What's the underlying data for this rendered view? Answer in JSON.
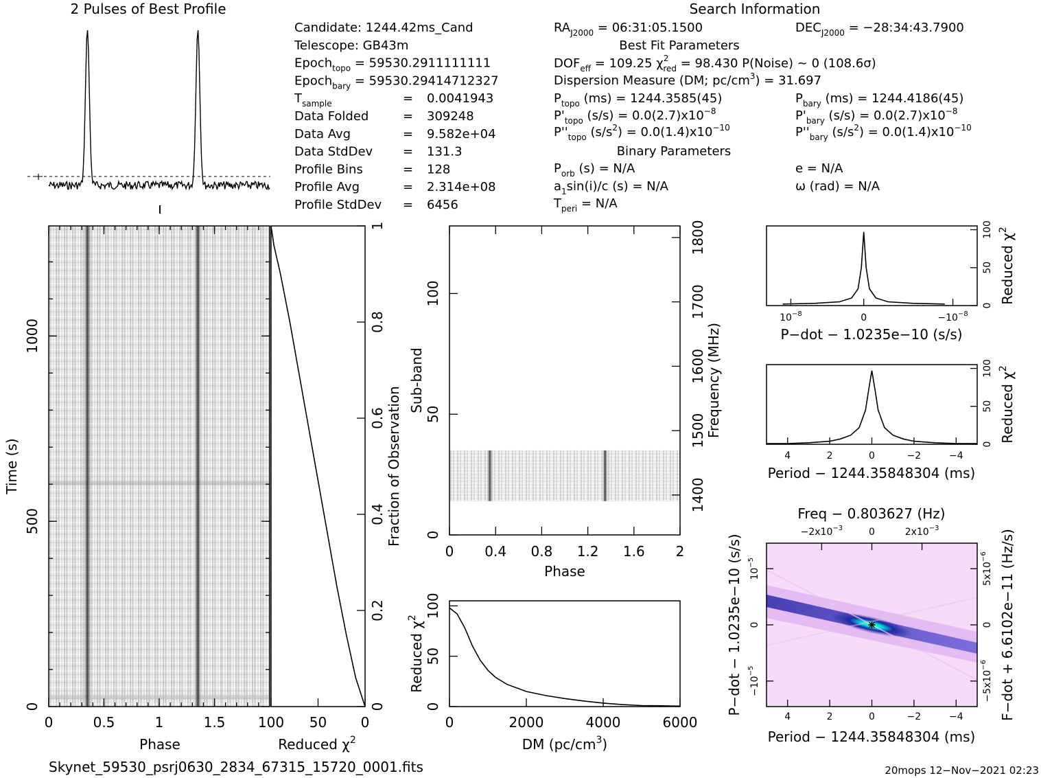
{
  "profile": {
    "title": "2 Pulses of Best Profile"
  },
  "info": {
    "left": [
      {
        "label": "Candidate:  1244.42ms_Cand"
      },
      {
        "label": "Telescope:  GB43m"
      },
      {
        "label": "Epoch",
        "sub": "topo",
        "value": " = 59530.2911111111"
      },
      {
        "label": "Epoch",
        "sub": "bary",
        "value": " = 59530.29414712327"
      },
      {
        "label": "T",
        "sub": "sample",
        "eq": "=",
        "value": "0.0041943"
      },
      {
        "label": "Data Folded",
        "eq": "=",
        "value": "309248"
      },
      {
        "label": "Data Avg",
        "eq": "=",
        "value": "9.582e+04"
      },
      {
        "label": "Data StdDev",
        "eq": "=",
        "value": "131.3"
      },
      {
        "label": "Profile Bins",
        "eq": "=",
        "value": "128"
      },
      {
        "label": "Profile Avg",
        "eq": "=",
        "value": "2.314e+08"
      },
      {
        "label": "Profile StdDev",
        "eq": "=",
        "value": "6456"
      }
    ],
    "search_title": "Search Information",
    "ra": {
      "label": "RA",
      "sub": "J2000",
      "value": " = 06:31:05.1500"
    },
    "dec": {
      "label": "DEC",
      "sub": "J2000",
      "value": " = −28:34:43.7900"
    },
    "best_fit_title": "Best Fit Parameters",
    "dof": {
      "a": "DOF",
      "a_sub": "eff",
      "b": " = 109.25  χ",
      "b_sup": "2",
      "b_sub": "red",
      "c": " = 98.430  P(Noise) ~ 0   (108.6σ)"
    },
    "dm": {
      "a": "Dispersion Measure (DM; pc/cm",
      "a_sup": "3",
      "b": ") = 31.697"
    },
    "ptopo": {
      "a": "P",
      "a_sub": "topo",
      "b": " (ms) =  1244.3585(45)"
    },
    "pbary": {
      "a": "P",
      "a_sub": "bary",
      "b": " (ms) =  1244.4186(45)"
    },
    "pdtopo": {
      "a": "P'",
      "a_sub": "topo",
      "b": " (s/s) = 0.0(2.7)x10",
      "b_sup": "−8"
    },
    "pdbary": {
      "a": "P'",
      "a_sub": "bary",
      "b": " (s/s) = 0.0(2.7)x10",
      "b_sup": "−8"
    },
    "pddtopo": {
      "a": "P''",
      "a_sub": "topo",
      "b": " (s/s",
      "b_sup": "2",
      "c": ") = 0.0(1.4)x10",
      "c_sup": "−10"
    },
    "pddbary": {
      "a": "P''",
      "a_sub": "bary",
      "b": " (s/s",
      "b_sup": "2",
      "c": ") = 0.0(1.4)x10",
      "c_sup": "−10"
    },
    "binary_title": "Binary Parameters",
    "porb": {
      "a": "P",
      "a_sub": "orb",
      "b": " (s) = N/A"
    },
    "ecc": "e = N/A",
    "asini": {
      "a": "a",
      "a_sub": "1",
      "b": "sin(i)/c (s) = N/A"
    },
    "omega": "ω (rad) = N/A",
    "tperi": {
      "a": "T",
      "a_sub": "peri",
      "b": " = N/A"
    }
  },
  "footer": {
    "filename": "Skynet_59530_psrj0630_2834_67315_15720_0001.fits",
    "stamp": "20mops 12−Nov−2021 02:23"
  },
  "colors": {
    "ink": "#000000",
    "map_dark": "#1b1b8f",
    "map_hot": "#00e0e0",
    "map_mid": "#d9a6ee",
    "map_bg": "#f6dcf9"
  },
  "chart_data": [
    {
      "id": "pulse_profile",
      "type": "line",
      "title": "2 Pulses of Best Profile",
      "x": "phase 0-2",
      "pulse_centers": [
        0.35,
        1.35
      ],
      "peak_relative_height": 1.0
    },
    {
      "id": "time_phase",
      "type": "heatmap",
      "xlabel": "Phase",
      "xlim": [
        0,
        2
      ],
      "xticks": [
        "0",
        "0.5",
        "1",
        "1.5"
      ],
      "ylabel": "Time (s)",
      "ylim": [
        0,
        1297
      ],
      "yticks": [
        "0",
        "500",
        "1000"
      ],
      "pulse_phase": [
        0.35,
        1.35
      ]
    },
    {
      "id": "reduced_chi2_vs_fraction",
      "type": "line",
      "xlabel": "Reduced χ",
      "xlabel_sup": "2",
      "xlim": [
        100,
        0
      ],
      "xticks": [
        "100",
        "50",
        "0"
      ],
      "ylabel": "Fraction of Observation",
      "ylim": [
        0,
        1
      ],
      "yticks": [
        "0",
        "0.2",
        "0.4",
        "0.6",
        "0.8",
        "1"
      ],
      "x": [
        0,
        10,
        20,
        30,
        40,
        50,
        60,
        70,
        80,
        90,
        97,
        100
      ],
      "y": [
        0.0,
        0.06,
        0.15,
        0.25,
        0.36,
        0.47,
        0.58,
        0.69,
        0.8,
        0.9,
        0.96,
        1.0
      ]
    },
    {
      "id": "subband_phase",
      "type": "heatmap",
      "xlabel": "Phase",
      "xlim": [
        0,
        2
      ],
      "xticks": [
        "0",
        "0.4",
        "0.8",
        "1.2",
        "1.6",
        "2"
      ],
      "ylabel": "Sub-band",
      "ylim": [
        0,
        128
      ],
      "yticks": [
        "0",
        "50",
        "100"
      ],
      "y2label": "Frequency (MHz)",
      "y2ticks": [
        "1400",
        "1500",
        "1600",
        "1700",
        "1800"
      ],
      "band_subbands": [
        14,
        35
      ]
    },
    {
      "id": "dm_curve",
      "type": "line",
      "xlabel": "DM (pc/cm",
      "xlabel_sup": "3",
      "xlabel_end": ")",
      "xlim": [
        0,
        6000
      ],
      "xticks": [
        "0",
        "2000",
        "4000",
        "6000"
      ],
      "ylabel": "Reduced χ",
      "ylabel_sup": "2",
      "ylim": [
        0,
        100
      ],
      "yticks": [
        "0",
        "50",
        "100"
      ],
      "x": [
        0,
        200,
        400,
        600,
        800,
        1000,
        1200,
        1500,
        2000,
        2500,
        3000,
        3500,
        4000,
        4500,
        5000,
        5500,
        6000
      ],
      "y": [
        98,
        92,
        78,
        60,
        46,
        36,
        29,
        22,
        15,
        11,
        8,
        5.5,
        3.5,
        2,
        1,
        0.8,
        0.5
      ]
    },
    {
      "id": "pdot_curve",
      "type": "line",
      "xlabel": "P−dot − 1.0235e−10 (s/s)",
      "xticks": [
        {
          "base": "10",
          "sup": "−8"
        },
        {
          "base": "0"
        },
        {
          "base": "−10",
          "sup": "−8"
        }
      ],
      "ylabel": "Reduced χ",
      "ylabel_sup": "2",
      "ylim": [
        0,
        100
      ],
      "yticks": [
        "0",
        "50",
        "100"
      ],
      "x": [
        -1,
        -0.6,
        -0.3,
        -0.15,
        -0.07,
        -0.03,
        0,
        0.03,
        0.07,
        0.15,
        0.3,
        0.6,
        1
      ],
      "y": [
        2,
        3,
        5,
        10,
        22,
        50,
        97,
        50,
        22,
        10,
        5,
        3,
        2
      ]
    },
    {
      "id": "period_curve",
      "type": "line",
      "xlabel": "Period − 1244.35848304 (ms)",
      "xlim": [
        5,
        -5
      ],
      "xticks": [
        "4",
        "2",
        "0",
        "−2",
        "−4"
      ],
      "ylabel": "Reduced χ",
      "ylabel_sup": "2",
      "ylim": [
        0,
        100
      ],
      "yticks": [
        "0",
        "50",
        "100"
      ],
      "x": [
        5,
        4,
        3,
        2,
        1.5,
        1,
        0.6,
        0.3,
        0.15,
        0,
        -0.15,
        -0.3,
        -0.6,
        -1,
        -1.5,
        -2,
        -3,
        -4,
        -5
      ],
      "y": [
        1,
        1,
        2,
        4,
        7,
        12,
        22,
        45,
        72,
        97,
        72,
        45,
        22,
        12,
        7,
        4,
        2,
        1,
        1
      ]
    },
    {
      "id": "p_pdot_plane",
      "type": "heatmap",
      "top_label": "Freq − 0.803627 (Hz)",
      "top_ticks": [
        {
          "base": "−2x10",
          "sup": "−3"
        },
        {
          "base": "0"
        },
        {
          "base": "2x10",
          "sup": "−3"
        }
      ],
      "xlabel": "Period − 1244.35848304 (ms)",
      "xticks": [
        "4",
        "2",
        "0",
        "−2",
        "−4"
      ],
      "ylabel": "P−dot − 1.0235e−10 (s/s)",
      "yticks": [
        {
          "base": "10",
          "sup": "−5"
        },
        {
          "base": "0"
        },
        {
          "base": "−10",
          "sup": "−5"
        }
      ],
      "y2label": "F−dot + 6.6102e−11 (Hz/s)",
      "y2ticks": [
        {
          "base": "−5x10",
          "sup": "−6"
        },
        {
          "base": "0"
        },
        {
          "base": "5x10",
          "sup": "−6"
        }
      ],
      "best": {
        "x": 0,
        "y": 0
      }
    }
  ]
}
